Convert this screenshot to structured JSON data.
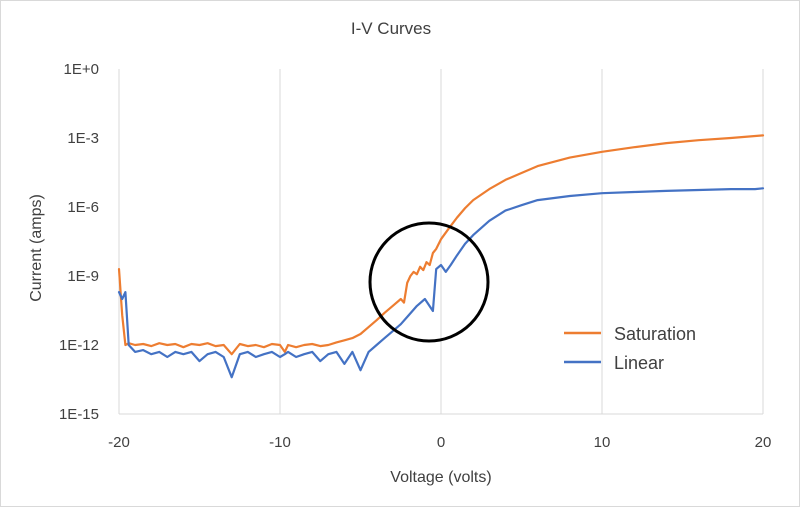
{
  "chart_data": {
    "type": "line",
    "title": "I-V Curves",
    "xlabel": "Voltage (volts)",
    "ylabel": "Current (amps)",
    "xlim": [
      -20,
      20
    ],
    "ylim": [
      1e-15,
      1
    ],
    "yscale": "log",
    "grid": "vertical",
    "legend_position": "bottom-right",
    "x_ticks": [
      -20,
      -10,
      0,
      10,
      20
    ],
    "x_tick_labels": [
      "-20",
      "-10",
      "0",
      "10",
      "20"
    ],
    "y_ticks": [
      1e-15,
      1e-12,
      1e-09,
      1e-06,
      0.001,
      1
    ],
    "y_tick_labels": [
      "1E-15",
      "1E-12",
      "1E-9",
      "1E-6",
      "1E-3",
      "1E+0"
    ],
    "series": [
      {
        "name": "Saturation",
        "color": "#ed7d31",
        "x": [
          -20,
          -19.8,
          -19.6,
          -19.4,
          -19,
          -18.5,
          -18,
          -17.5,
          -17,
          -16.5,
          -16,
          -15.5,
          -15,
          -14.5,
          -14,
          -13.5,
          -13,
          -12.5,
          -12,
          -11.5,
          -11,
          -10.5,
          -10,
          -9.7,
          -9.5,
          -9,
          -8.5,
          -8,
          -7.5,
          -7,
          -6.5,
          -6,
          -5.5,
          -5,
          -4.5,
          -4,
          -3.5,
          -3,
          -2.5,
          -2.3,
          -2.1,
          -1.9,
          -1.7,
          -1.5,
          -1.3,
          -1.1,
          -0.9,
          -0.7,
          -0.5,
          -0.3,
          0,
          0.5,
          1,
          1.5,
          2,
          3,
          4,
          5,
          6,
          8,
          10,
          12,
          14,
          16,
          18,
          20
        ],
        "y": [
          2e-09,
          2e-11,
          1e-12,
          1.2e-12,
          1e-12,
          1.1e-12,
          9e-13,
          1.2e-12,
          1e-12,
          1.1e-12,
          8e-13,
          1.1e-12,
          1e-12,
          1.2e-12,
          9e-13,
          1e-12,
          4e-13,
          1.1e-12,
          9e-13,
          1e-12,
          8e-13,
          1.1e-12,
          1e-12,
          5e-13,
          1e-12,
          8e-13,
          1e-12,
          1.1e-12,
          9e-13,
          1e-12,
          1.3e-12,
          1.6e-12,
          2e-12,
          3e-12,
          6e-12,
          1.2e-11,
          2.5e-11,
          5e-11,
          1e-10,
          7e-11,
          5e-10,
          1e-09,
          1.5e-09,
          1.2e-09,
          2.5e-09,
          1.8e-09,
          4e-09,
          3e-09,
          1e-08,
          1.5e-08,
          4e-08,
          1.2e-07,
          3.5e-07,
          9e-07,
          2e-06,
          6e-06,
          1.5e-05,
          3e-05,
          6e-05,
          0.00014,
          0.00025,
          0.0004,
          0.0006,
          0.0008,
          0.001,
          0.0013
        ]
      },
      {
        "name": "Linear",
        "color": "#4472c4",
        "x": [
          -20,
          -19.8,
          -19.6,
          -19.4,
          -19,
          -18.5,
          -18,
          -17.5,
          -17,
          -16.5,
          -16,
          -15.5,
          -15,
          -14.5,
          -14,
          -13.5,
          -13,
          -12.5,
          -12,
          -11.5,
          -11,
          -10.5,
          -10,
          -9.7,
          -9.5,
          -9,
          -8.5,
          -8,
          -7.5,
          -7,
          -6.5,
          -6,
          -5.5,
          -5,
          -4.5,
          -4,
          -3.5,
          -3,
          -2.5,
          -2,
          -1.5,
          -1,
          -0.5,
          -0.3,
          0,
          0.3,
          0.6,
          1,
          1.5,
          2,
          3,
          4,
          5,
          6,
          8,
          10,
          12,
          14,
          16,
          18,
          19.5,
          20
        ],
        "y": [
          2e-10,
          1e-10,
          2e-10,
          1e-12,
          5e-13,
          6e-13,
          4e-13,
          5e-13,
          3e-13,
          5e-13,
          4e-13,
          5e-13,
          2e-13,
          4e-13,
          5e-13,
          3e-13,
          4e-14,
          4e-13,
          5e-13,
          3e-13,
          4e-13,
          5e-13,
          3e-13,
          4e-13,
          5e-13,
          3e-13,
          4e-13,
          5e-13,
          2e-13,
          4e-13,
          5e-13,
          1.5e-13,
          5e-13,
          8e-14,
          5e-13,
          1e-12,
          2e-12,
          4e-12,
          8e-12,
          2e-11,
          5e-11,
          1e-10,
          3e-11,
          2e-09,
          3e-09,
          1.5e-09,
          3e-09,
          8e-09,
          2.5e-08,
          6e-08,
          2.5e-07,
          7e-07,
          1.2e-06,
          2e-06,
          3e-06,
          4e-06,
          4.5e-06,
          5e-06,
          5.5e-06,
          6e-06,
          6e-06,
          6.5e-06
        ]
      }
    ]
  }
}
